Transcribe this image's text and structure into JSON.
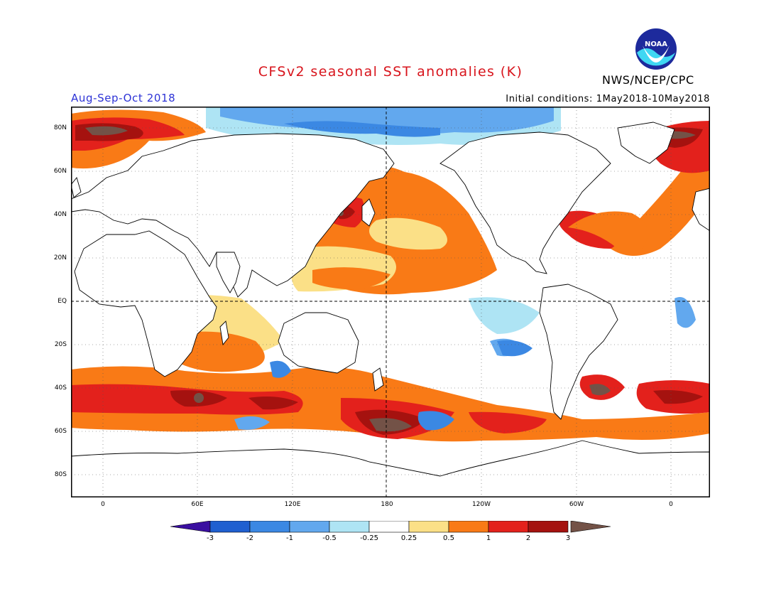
{
  "header": {
    "title": "CFSv2 seasonal SST anomalies (K)",
    "agency": "NWS/NCEP/CPC",
    "season": "Aug-Sep-Oct 2018",
    "initial_conditions": "Initial conditions: 1May2018-10May2018",
    "logo_text": "NOAA"
  },
  "map": {
    "projection": "equirectangular",
    "lon_range": [
      -16,
      344
    ],
    "lat_range": [
      -90,
      90
    ],
    "lat_labels": [
      "80N",
      "60N",
      "40N",
      "20N",
      "EQ",
      "20S",
      "40S",
      "60S",
      "80S"
    ],
    "lat_values": [
      80,
      60,
      40,
      20,
      0,
      -20,
      -40,
      -60,
      -80
    ],
    "lon_labels": [
      "0",
      "60E",
      "120E",
      "180",
      "120W",
      "60W",
      "0"
    ],
    "lon_values": [
      0,
      60,
      120,
      180,
      240,
      300,
      360
    ],
    "reference_lines": [
      "EQ",
      "180"
    ]
  },
  "colorbar": {
    "labels": [
      "-3",
      "-2",
      "-1",
      "-0.5",
      "-0.25",
      "0.25",
      "0.5",
      "1",
      "2",
      "3"
    ],
    "colors": [
      "#3a0fa0",
      "#1f5fd0",
      "#3b88e3",
      "#62a8ee",
      "#aee4f4",
      "#ffffff",
      "#fbe087",
      "#f97a16",
      "#e3211c",
      "#a5120f",
      "#735247"
    ]
  },
  "anomaly_colors": {
    "lt_-3": "#3a0fa0",
    "-3_-2": "#1f5fd0",
    "-2_-1": "#3b88e3",
    "-1_-0.5": "#62a8ee",
    "-0.5_-0.25": "#aee4f4",
    "0.25_0.5": "#fbe087",
    "0.5_1": "#f97a16",
    "1_2": "#e3211c",
    "2_3": "#a5120f",
    "gt_3": "#735247"
  }
}
